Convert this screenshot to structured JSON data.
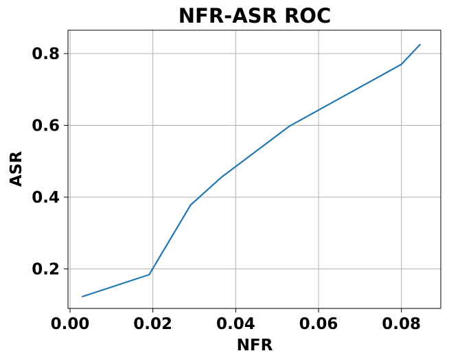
{
  "chart_data": {
    "type": "line",
    "title": "NFR-ASR ROC",
    "xlabel": "NFR",
    "ylabel": "ASR",
    "xlim": [
      -0.0005,
      0.0895
    ],
    "ylim": [
      0.09,
      0.865
    ],
    "xticks": [
      0.0,
      0.02,
      0.04,
      0.06,
      0.08
    ],
    "xtick_labels": [
      "0.00",
      "0.02",
      "0.04",
      "0.06",
      "0.08"
    ],
    "yticks": [
      0.2,
      0.4,
      0.6,
      0.8
    ],
    "ytick_labels": [
      "0.2",
      "0.4",
      "0.6",
      "0.8"
    ],
    "grid": true,
    "legend": "none",
    "series": [
      {
        "color": "#1f77b4",
        "x": [
          0.003,
          0.0191,
          0.0291,
          0.0365,
          0.053,
          0.08,
          0.0845
        ],
        "y": [
          0.123,
          0.184,
          0.378,
          0.455,
          0.598,
          0.77,
          0.825
        ]
      }
    ]
  }
}
